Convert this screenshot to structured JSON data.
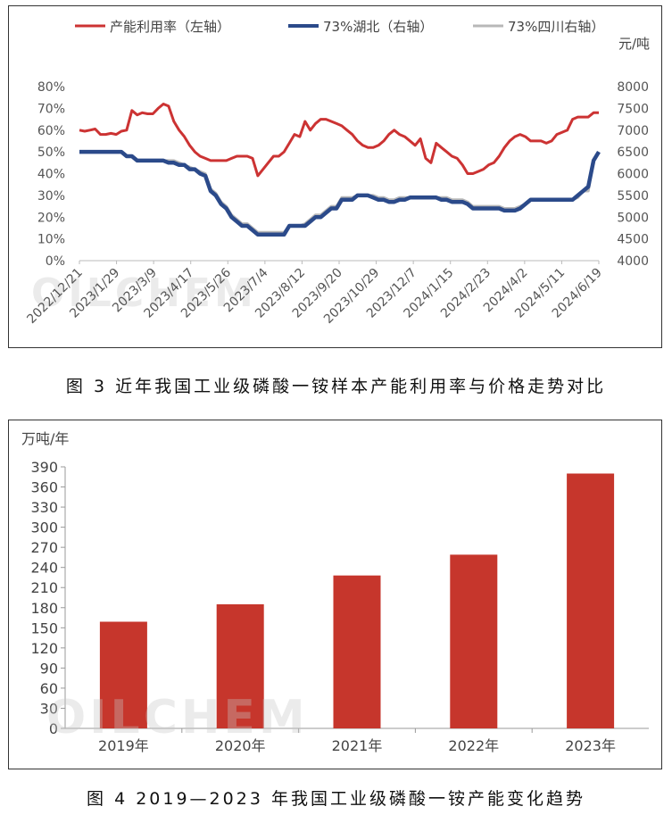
{
  "figures": [
    {
      "caption": "图 3  近年我国工业级磷酸一铵样本产能利用率与价格走势对比"
    },
    {
      "caption": "图 4  2019—2023 年我国工业级磷酸一铵产能变化趋势"
    }
  ],
  "watermark": "OILCHEM",
  "chart_data": [
    {
      "type": "line",
      "title": "",
      "legend_position": "top",
      "right_axis_unit": "元/吨",
      "left_axis": {
        "ticks": [
          "0%",
          "10%",
          "20%",
          "30%",
          "40%",
          "50%",
          "60%",
          "70%",
          "80%"
        ],
        "ylim": [
          0,
          80
        ]
      },
      "right_axis": {
        "ticks": [
          "4000",
          "4500",
          "5000",
          "5500",
          "6000",
          "6500",
          "7000",
          "7500",
          "8000"
        ],
        "ylim": [
          4000,
          8000
        ]
      },
      "x_tick_labels": [
        "2022/12/21",
        "2023/1/29",
        "2023/3/9",
        "2023/4/17",
        "2023/5/26",
        "2023/7/4",
        "2023/8/12",
        "2023/9/20",
        "2023/10/29",
        "2023/12/7",
        "2024/1/15",
        "2024/2/23",
        "2024/4/2",
        "2024/5/11",
        "2024/6/19"
      ],
      "grid": false,
      "colors": {
        "utilization": "#cc3333",
        "hubei": "#2b4a8a",
        "sichuan": "#b8b8b8"
      },
      "series": [
        {
          "name": "产能利用率（左轴）",
          "axis": "left",
          "values": [
            60,
            59.5,
            60,
            60.5,
            58,
            58,
            58.5,
            58,
            59.5,
            60,
            69,
            67,
            68,
            67.5,
            67.5,
            70,
            72,
            71,
            64,
            60,
            57,
            53,
            50,
            48,
            47,
            46,
            46,
            46,
            46,
            47,
            48,
            48,
            48,
            47,
            39,
            42,
            45,
            48,
            48,
            50,
            54,
            58,
            57,
            64,
            60,
            63,
            65,
            65,
            64,
            63,
            62,
            60,
            58,
            55,
            53,
            52,
            52,
            53,
            55,
            58,
            60,
            58,
            57,
            55,
            53,
            56,
            47,
            45,
            54,
            52,
            50,
            48,
            47,
            44,
            40,
            40,
            41,
            42,
            44,
            45,
            48,
            52,
            55,
            57,
            58,
            57,
            55,
            55,
            55,
            54,
            55,
            58,
            59,
            60,
            65,
            66,
            66,
            66,
            68,
            68
          ]
        },
        {
          "name": "73%湖北（右轴）",
          "axis": "right",
          "values": [
            6500,
            6500,
            6500,
            6500,
            6500,
            6500,
            6500,
            6500,
            6500,
            6400,
            6400,
            6300,
            6300,
            6300,
            6300,
            6300,
            6300,
            6250,
            6250,
            6200,
            6200,
            6100,
            6100,
            6000,
            5950,
            5600,
            5500,
            5300,
            5200,
            5000,
            4900,
            4800,
            4800,
            4700,
            4600,
            4600,
            4600,
            4600,
            4600,
            4600,
            4800,
            4800,
            4800,
            4800,
            4900,
            5000,
            5000,
            5100,
            5200,
            5200,
            5400,
            5400,
            5400,
            5500,
            5500,
            5500,
            5450,
            5400,
            5400,
            5350,
            5350,
            5400,
            5400,
            5450,
            5450,
            5450,
            5450,
            5450,
            5450,
            5400,
            5400,
            5350,
            5350,
            5350,
            5300,
            5200,
            5200,
            5200,
            5200,
            5200,
            5200,
            5150,
            5150,
            5150,
            5200,
            5300,
            5400,
            5400,
            5400,
            5400,
            5400,
            5400,
            5400,
            5400,
            5400,
            5500,
            5600,
            5700,
            6300,
            6500
          ]
        },
        {
          "name": "73%四川右轴）",
          "axis": "right",
          "values": [
            6500,
            6500,
            6500,
            6500,
            6500,
            6500,
            6500,
            6500,
            6500,
            6400,
            6400,
            6300,
            6300,
            6300,
            6300,
            6300,
            6300,
            6300,
            6300,
            6250,
            6200,
            6150,
            6100,
            6050,
            6000,
            5650,
            5550,
            5350,
            5250,
            5050,
            4950,
            4850,
            4850,
            4750,
            4650,
            4650,
            4650,
            4650,
            4650,
            4650,
            4800,
            4800,
            4800,
            4850,
            4950,
            5050,
            5050,
            5150,
            5250,
            5250,
            5450,
            5450,
            5450,
            5500,
            5500,
            5500,
            5500,
            5450,
            5450,
            5400,
            5400,
            5450,
            5450,
            5450,
            5450,
            5450,
            5450,
            5450,
            5450,
            5450,
            5450,
            5400,
            5400,
            5400,
            5350,
            5250,
            5250,
            5250,
            5250,
            5250,
            5250,
            5200,
            5200,
            5200,
            5250,
            5300,
            5400,
            5400,
            5400,
            5400,
            5400,
            5400,
            5400,
            5400,
            5400,
            5450,
            5600,
            5600,
            6300,
            6500
          ]
        }
      ]
    },
    {
      "type": "bar",
      "title": "",
      "unit_label": "万吨/年",
      "categories": [
        "2019年",
        "2020年",
        "2021年",
        "2022年",
        "2023年"
      ],
      "values": [
        159,
        185,
        228,
        259,
        380
      ],
      "ylim": [
        0,
        390
      ],
      "y_ticks": [
        "0",
        "30",
        "60",
        "90",
        "120",
        "150",
        "180",
        "210",
        "240",
        "270",
        "300",
        "330",
        "360",
        "390"
      ],
      "grid": false,
      "colors": {
        "bar": "#c6362c"
      }
    }
  ]
}
